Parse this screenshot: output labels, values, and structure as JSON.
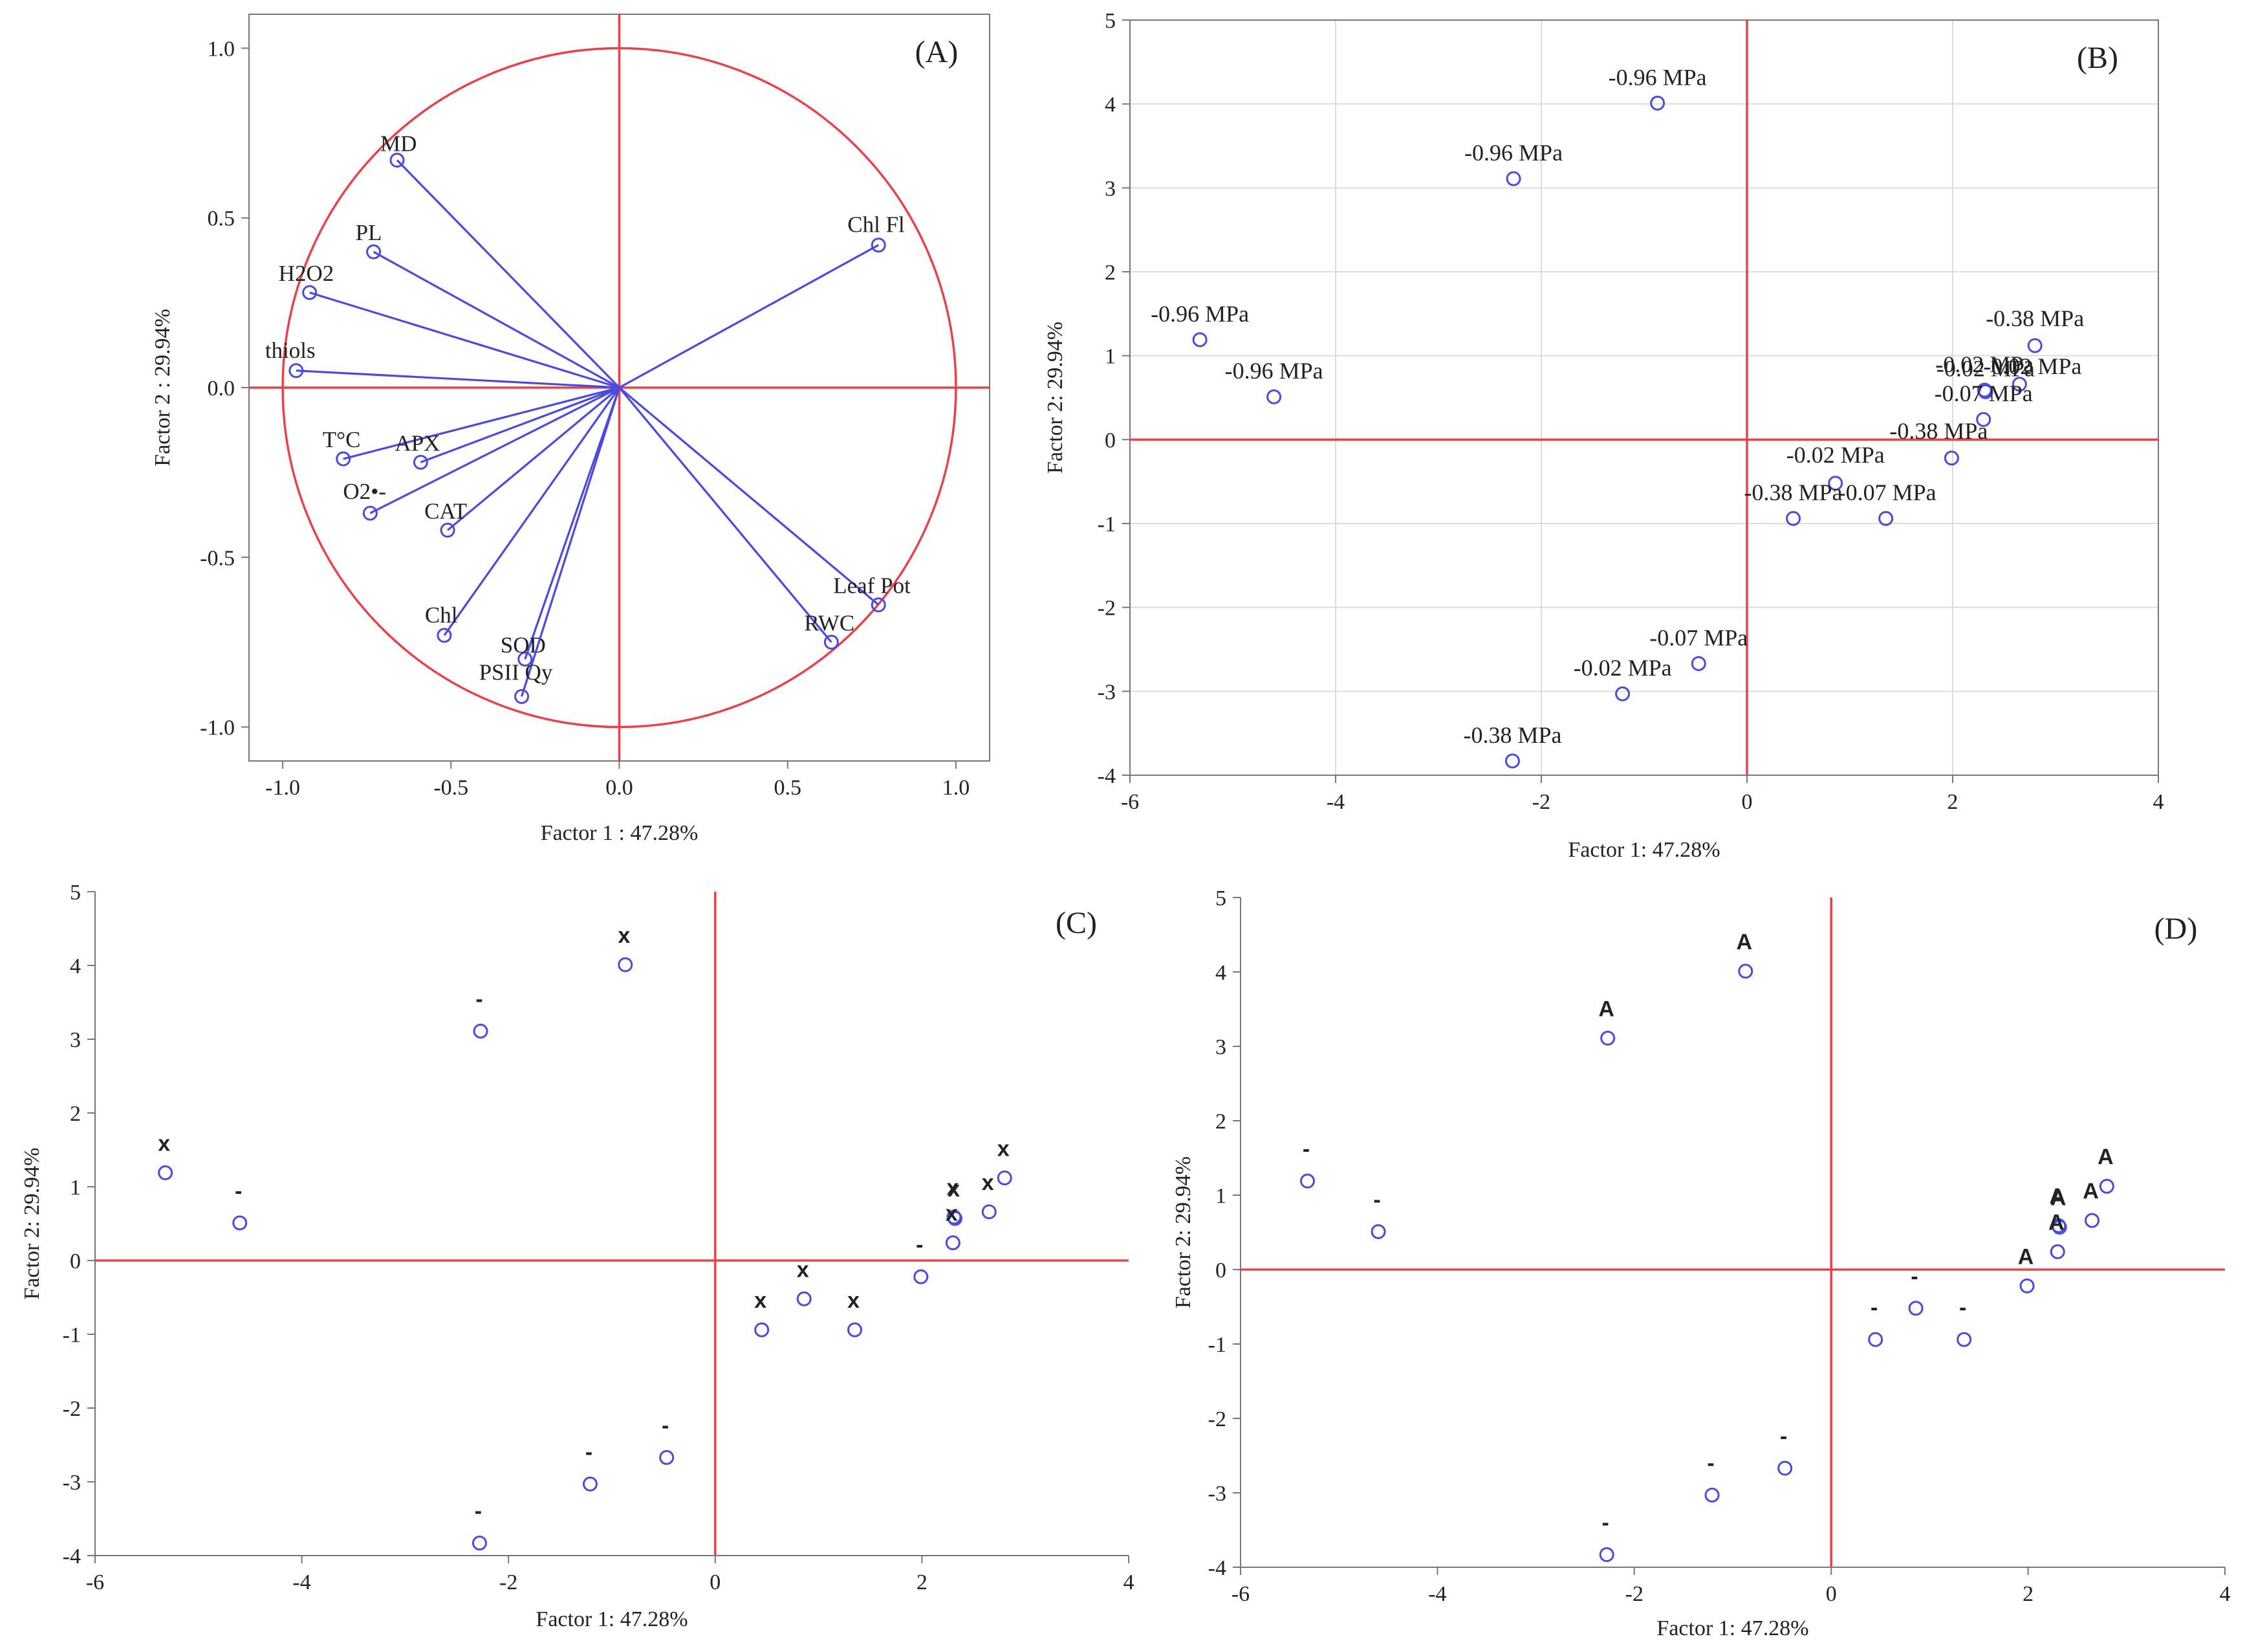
{
  "chart_data": [
    {
      "panel": "(A)",
      "type": "scatter",
      "subtype": "pca-loading-circle",
      "xlabel": "Factor 1 : 47.28%",
      "ylabel": "Factor 2 : 29.94%",
      "xlim": [
        -1.1,
        1.1
      ],
      "ylim": [
        -1.1,
        1.1
      ],
      "xticks": [
        -1.0,
        -0.5,
        0.0,
        0.5,
        1.0
      ],
      "yticks": [
        -1.0,
        -0.5,
        0.0,
        0.5,
        1.0
      ],
      "tick_labels_x": [
        "-1.0",
        "-0.5",
        "0.0",
        "0.5",
        "1.0"
      ],
      "tick_labels_y": [
        "-1.0",
        "-0.5",
        "0.0",
        "0.5",
        "1.0"
      ],
      "grid": false,
      "unit_circle": true,
      "reference_line_color": "#e8434a",
      "series_color": "#4a4ae0",
      "vectors": [
        {
          "label": "MD",
          "x": -0.66,
          "y": 0.67
        },
        {
          "label": "PL",
          "x": -0.73,
          "y": 0.4
        },
        {
          "label": "H2O2",
          "x": -0.92,
          "y": 0.28
        },
        {
          "label": "thiols",
          "x": -0.96,
          "y": 0.05
        },
        {
          "label": "T°C",
          "x": -0.82,
          "y": -0.21
        },
        {
          "label": "APX",
          "x": -0.59,
          "y": -0.22
        },
        {
          "label": "O2•-",
          "x": -0.74,
          "y": -0.37
        },
        {
          "label": "CAT",
          "x": -0.51,
          "y": -0.42
        },
        {
          "label": "Chl",
          "x": -0.52,
          "y": -0.73
        },
        {
          "label": "SOD",
          "x": -0.28,
          "y": -0.8
        },
        {
          "label": "PSII Qy",
          "x": -0.29,
          "y": -0.91
        },
        {
          "label": "Chl Fl",
          "x": 0.77,
          "y": 0.42
        },
        {
          "label": "Leaf Pot",
          "x": 0.77,
          "y": -0.64
        },
        {
          "label": "RWC",
          "x": 0.63,
          "y": -0.75
        }
      ]
    },
    {
      "panel": "(B)",
      "type": "scatter",
      "xlabel": "Factor 1: 47.28%",
      "ylabel": "Factor 2: 29.94%",
      "xlim": [
        -6,
        4
      ],
      "ylim": [
        -4,
        5
      ],
      "xticks": [
        -6,
        -4,
        -2,
        0,
        2,
        4
      ],
      "yticks": [
        -4,
        -3,
        -2,
        -1,
        0,
        1,
        2,
        3,
        4,
        5
      ],
      "grid": true,
      "points": [
        {
          "x": -0.87,
          "y": 4.01,
          "label": "-0.96 MPa"
        },
        {
          "x": -2.27,
          "y": 3.11,
          "label": "-0.96 MPa"
        },
        {
          "x": -5.32,
          "y": 1.19,
          "label": "-0.96 MPa"
        },
        {
          "x": -4.6,
          "y": 0.51,
          "label": "-0.96 MPa"
        },
        {
          "x": 2.8,
          "y": 1.12,
          "label": "-0.38 MPa"
        },
        {
          "x": 2.31,
          "y": 0.59,
          "label": "-0.02 MPa"
        },
        {
          "x": 2.32,
          "y": 0.57,
          "label": "-0.02 MPa"
        },
        {
          "x": 2.65,
          "y": 0.66,
          "label": "-0.02 MPa"
        },
        {
          "x": 2.3,
          "y": 0.24,
          "label": "-0.07 MPa"
        },
        {
          "x": 1.99,
          "y": -0.22,
          "label": "-0.38 MPa"
        },
        {
          "x": 0.86,
          "y": -0.52,
          "label": "-0.02 MPa"
        },
        {
          "x": 0.45,
          "y": -0.94,
          "label": "-0.38 MPa"
        },
        {
          "x": 1.35,
          "y": -0.94,
          "label": "-0.07 MPa"
        },
        {
          "x": -0.47,
          "y": -2.67,
          "label": "-0.07 MPa"
        },
        {
          "x": -1.21,
          "y": -3.03,
          "label": "-0.02 MPa"
        },
        {
          "x": -2.28,
          "y": -3.83,
          "label": "-0.38 MPa"
        }
      ]
    },
    {
      "panel": "(C)",
      "type": "scatter",
      "xlabel": "Factor 1: 47.28%",
      "ylabel": "Factor 2: 29.94%",
      "xlim": [
        -6,
        4
      ],
      "ylim": [
        -4,
        5
      ],
      "xticks": [
        -6,
        -4,
        -2,
        0,
        2,
        4
      ],
      "yticks": [
        -4,
        -3,
        -2,
        -1,
        0,
        1,
        2,
        3,
        4,
        5
      ],
      "grid": false,
      "points": [
        {
          "x": -0.87,
          "y": 4.01,
          "label": "x"
        },
        {
          "x": -2.27,
          "y": 3.11,
          "label": "-"
        },
        {
          "x": -5.32,
          "y": 1.19,
          "label": "x"
        },
        {
          "x": -4.6,
          "y": 0.51,
          "label": "-"
        },
        {
          "x": 2.8,
          "y": 1.12,
          "label": "x"
        },
        {
          "x": 2.31,
          "y": 0.59,
          "label": "x"
        },
        {
          "x": 2.32,
          "y": 0.57,
          "label": "x"
        },
        {
          "x": 2.65,
          "y": 0.66,
          "label": "x"
        },
        {
          "x": 2.3,
          "y": 0.24,
          "label": "x"
        },
        {
          "x": 1.99,
          "y": -0.22,
          "label": "-"
        },
        {
          "x": 0.86,
          "y": -0.52,
          "label": "x"
        },
        {
          "x": 0.45,
          "y": -0.94,
          "label": "x"
        },
        {
          "x": 1.35,
          "y": -0.94,
          "label": "x"
        },
        {
          "x": -0.47,
          "y": -2.67,
          "label": "-"
        },
        {
          "x": -1.21,
          "y": -3.03,
          "label": "-"
        },
        {
          "x": -2.28,
          "y": -3.83,
          "label": "-"
        }
      ]
    },
    {
      "panel": "(D)",
      "type": "scatter",
      "xlabel": "Factor 1: 47.28%",
      "ylabel": "Factor 2: 29.94%",
      "xlim": [
        -6,
        4
      ],
      "ylim": [
        -4,
        5
      ],
      "xticks": [
        -6,
        -4,
        -2,
        0,
        2,
        4
      ],
      "yticks": [
        -4,
        -3,
        -2,
        -1,
        0,
        1,
        2,
        3,
        4,
        5
      ],
      "grid": false,
      "points": [
        {
          "x": -0.87,
          "y": 4.01,
          "label": "A"
        },
        {
          "x": -2.27,
          "y": 3.11,
          "label": "A"
        },
        {
          "x": -5.32,
          "y": 1.19,
          "label": "-"
        },
        {
          "x": -4.6,
          "y": 0.51,
          "label": "-"
        },
        {
          "x": 2.8,
          "y": 1.12,
          "label": "A"
        },
        {
          "x": 2.31,
          "y": 0.59,
          "label": "A"
        },
        {
          "x": 2.32,
          "y": 0.57,
          "label": "A"
        },
        {
          "x": 2.65,
          "y": 0.66,
          "label": "A"
        },
        {
          "x": 2.3,
          "y": 0.24,
          "label": "A"
        },
        {
          "x": 1.99,
          "y": -0.22,
          "label": "A"
        },
        {
          "x": 0.86,
          "y": -0.52,
          "label": "-"
        },
        {
          "x": 0.45,
          "y": -0.94,
          "label": "-"
        },
        {
          "x": 1.35,
          "y": -0.94,
          "label": "-"
        },
        {
          "x": -0.47,
          "y": -2.67,
          "label": "-"
        },
        {
          "x": -1.21,
          "y": -3.03,
          "label": "-"
        },
        {
          "x": -2.28,
          "y": -3.83,
          "label": "-"
        }
      ]
    }
  ]
}
